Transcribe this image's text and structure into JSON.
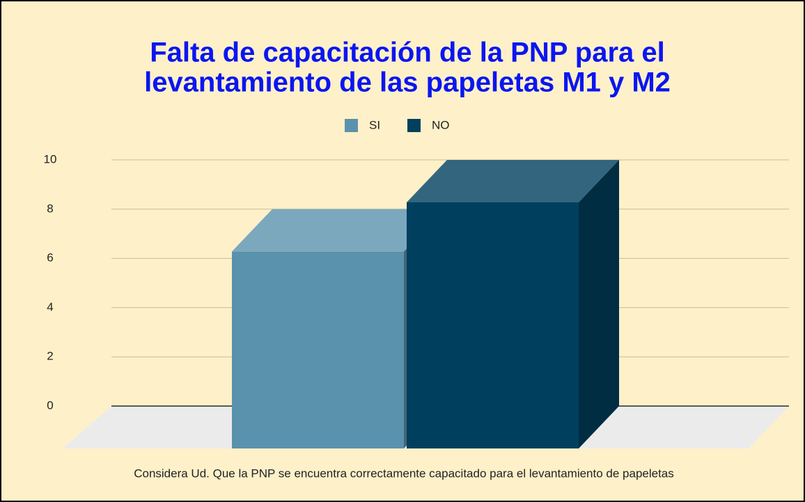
{
  "chart_data": {
    "type": "bar3d",
    "title": [
      "Falta de capacitación de la PNP para el",
      "levantamiento de las papeletas M1 y M2"
    ],
    "categories": [
      "Considera Ud. Que la PNP se encuentra correctamente capacitado para el levantamiento de papeletas"
    ],
    "series": [
      {
        "name": "SI",
        "color": "#5a92ad",
        "values": [
          8
        ]
      },
      {
        "name": "NO",
        "color": "#00405e",
        "values": [
          10
        ]
      }
    ],
    "ylim": [
      0,
      10
    ],
    "yticks": [
      0,
      2,
      4,
      6,
      8,
      10
    ],
    "grid": true,
    "legend": "top"
  }
}
